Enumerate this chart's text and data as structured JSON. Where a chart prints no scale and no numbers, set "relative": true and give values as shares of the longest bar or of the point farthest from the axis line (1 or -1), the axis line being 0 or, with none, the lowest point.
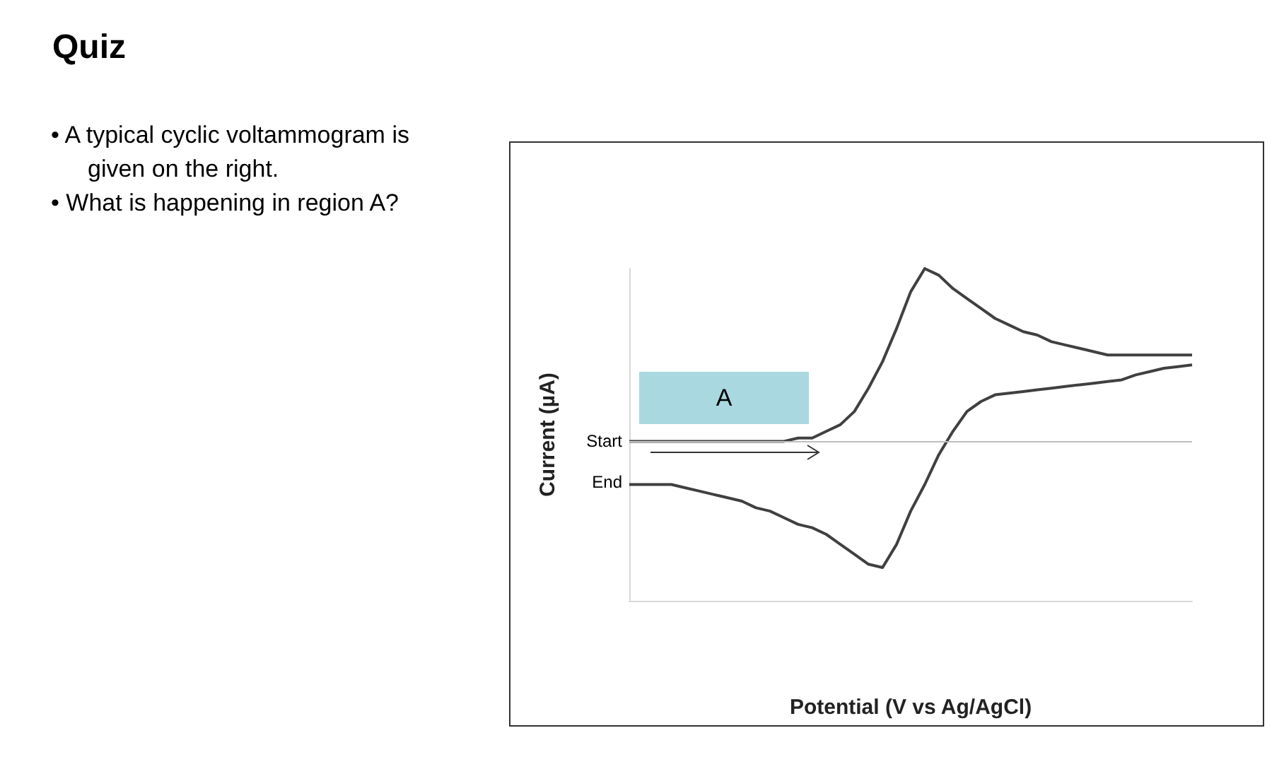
{
  "chart_data": {
    "type": "line",
    "title": "Quiz",
    "xlabel": "Potential (V vs Ag/AgCl)",
    "ylabel": "Current (µA)",
    "relative": true,
    "marker": "none",
    "line_style": "solid",
    "categories": [
      null,
      null,
      null,
      null,
      null,
      null,
      null,
      null,
      null,
      null,
      null,
      null,
      null,
      null,
      null,
      null,
      null,
      null,
      null,
      null,
      null,
      null,
      null,
      null,
      null,
      null,
      null,
      null,
      null,
      null,
      null,
      null,
      null,
      null,
      null,
      null,
      null,
      null,
      null,
      null,
      null
    ],
    "series": [
      {
        "color": "#404040",
        "values": [
          0.48,
          0.48,
          0.48,
          0.48,
          0.48,
          0.48,
          0.48,
          0.48,
          0.48,
          0.48,
          0.48,
          0.48,
          0.49,
          0.49,
          0.51,
          0.53,
          0.57,
          0.64,
          0.72,
          0.82,
          0.93,
          1,
          0.98,
          0.94,
          0.91,
          0.88,
          0.85,
          0.83,
          0.81,
          0.8,
          0.78,
          0.77,
          0.76,
          0.75,
          0.74,
          0.74,
          0.74,
          0.74,
          0.74,
          0.74,
          0.74
        ]
      },
      {
        "color": "#404040",
        "values": [
          0.35,
          0.35,
          0.35,
          0.35,
          0.34,
          0.33,
          0.32,
          0.31,
          0.3,
          0.28,
          0.27,
          0.25,
          0.23,
          0.22,
          0.2,
          0.17,
          0.14,
          0.11,
          0.1,
          0.17,
          0.27,
          0.35,
          0.44,
          0.51,
          0.57,
          0.6,
          0.62,
          0.625,
          0.63,
          0.635,
          0.64,
          0.645,
          0.65,
          0.655,
          0.66,
          0.665,
          0.68,
          0.69,
          0.7,
          0.705,
          0.71
        ]
      }
    ],
    "ref_lines": [
      {
        "axis": "y",
        "value": 0.48,
        "color": "#bfbfbf"
      }
    ],
    "annotations": [
      "• A typical cyclic voltammogram is given on the right.",
      "• What is happening in region A?",
      "Start",
      "End",
      "A"
    ]
  }
}
